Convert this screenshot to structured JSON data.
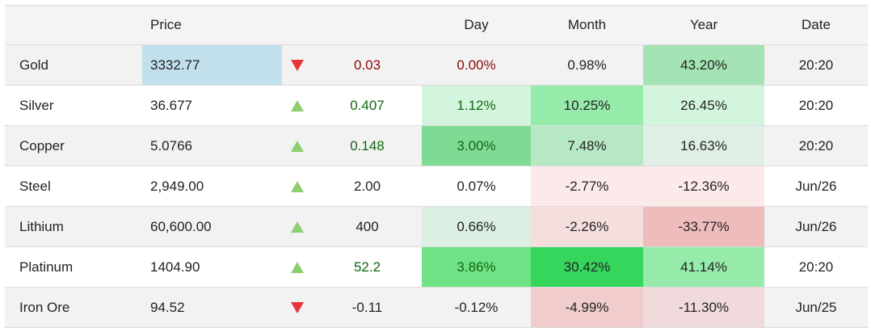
{
  "headers": {
    "name": "",
    "price": "Price",
    "arrow": "",
    "change": "",
    "day": "Day",
    "month": "Month",
    "year": "Year",
    "date": "Date"
  },
  "rows": [
    {
      "name": "Gold",
      "price": "3332.77",
      "direction": "down",
      "change": "0.03",
      "day": "0.00%",
      "month": "0.98%",
      "year": "43.20%",
      "date": "20:20"
    },
    {
      "name": "Silver",
      "price": "36.677",
      "direction": "up",
      "change": "0.407",
      "day": "1.12%",
      "month": "10.25%",
      "year": "26.45%",
      "date": "20:20"
    },
    {
      "name": "Copper",
      "price": "5.0766",
      "direction": "up",
      "change": "0.148",
      "day": "3.00%",
      "month": "7.48%",
      "year": "16.63%",
      "date": "20:20"
    },
    {
      "name": "Steel",
      "price": "2,949.00",
      "direction": "up",
      "change": "2.00",
      "day": "0.07%",
      "month": "-2.77%",
      "year": "-12.36%",
      "date": "Jun/26"
    },
    {
      "name": "Lithium",
      "price": "60,600.00",
      "direction": "up",
      "change": "400",
      "day": "0.66%",
      "month": "-2.26%",
      "year": "-33.77%",
      "date": "Jun/26"
    },
    {
      "name": "Platinum",
      "price": "1404.90",
      "direction": "up",
      "change": "52.2",
      "day": "3.86%",
      "month": "30.42%",
      "year": "41.14%",
      "date": "20:20"
    },
    {
      "name": "Iron Ore",
      "price": "94.52",
      "direction": "down",
      "change": "-0.11",
      "day": "-0.12%",
      "month": "-4.99%",
      "year": "-11.30%",
      "date": "Jun/25"
    }
  ],
  "colors": {
    "up_arrow": "#8ccf6e",
    "down_arrow": "#e8333a",
    "price_highlight": "#c2e0ec",
    "negative_text": "#8a0a0a",
    "positive_text": "#116611"
  },
  "icons": {
    "up": "triangle-up-icon",
    "down": "triangle-down-icon"
  }
}
